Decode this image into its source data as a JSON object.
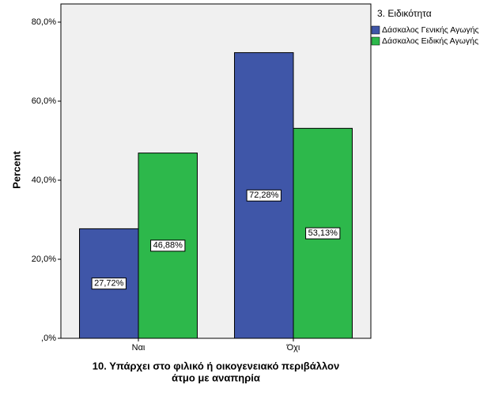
{
  "chart_data": {
    "type": "bar",
    "categories": [
      "Ναι",
      "Όχι"
    ],
    "series": [
      {
        "name": "Δάσκαλος Γενικής Αγωγής",
        "color": "#3f56a8",
        "values": [
          27.72,
          72.28
        ],
        "value_labels": [
          "27,72%",
          "72,28%"
        ]
      },
      {
        "name": "Δάσκαλος Ειδικής Αγωγής",
        "color": "#2db84b",
        "values": [
          46.88,
          53.13
        ],
        "value_labels": [
          "46,88%",
          "53,13%"
        ]
      }
    ],
    "ylim": [
      0,
      84.6
    ],
    "yticks": [
      {
        "value": 0,
        "label": ",0%"
      },
      {
        "value": 20,
        "label": "20,0%"
      },
      {
        "value": 40,
        "label": "40,0%"
      },
      {
        "value": 60,
        "label": "60,0%"
      },
      {
        "value": 80,
        "label": "80,0%"
      }
    ],
    "y_label": "Percent",
    "x_label": [
      "10. Υπάρχει στο φιλικό ή οικογενειακό περιβάλλον",
      "άτμο με αναπηρία"
    ],
    "legend_title": "3. Ειδικότητα",
    "legend_position": "right"
  }
}
